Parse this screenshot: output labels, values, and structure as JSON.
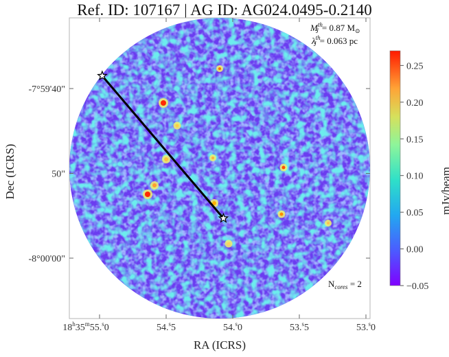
{
  "header": {
    "title": "Ref. ID: 107167 | AG ID: AG024.0495-0.2140"
  },
  "annotations": {
    "mass_text": "M",
    "mass_sup": "th",
    "mass_sub": "J",
    "mass_value": "= 0.87 M",
    "mass_unit_symbol": "⊙",
    "length_text": "λ",
    "length_sup": "th",
    "length_sub": "J",
    "length_value": "= 0.063 pc",
    "ncores_text": "N",
    "ncores_sub": "cores",
    "ncores_value": " = 2"
  },
  "chart_data": {
    "type": "heatmap",
    "title": "Ref. ID: 107167 | AG ID: AG024.0495-0.2140",
    "xlabel": "RA (ICRS)",
    "ylabel": "Dec (ICRS)",
    "x_ticks": [
      {
        "h": "18",
        "m": "35",
        "s": "55.0",
        "label_prefix": true
      },
      {
        "s": "54.5"
      },
      {
        "s": "54.0"
      },
      {
        "s": "53.5"
      },
      {
        "s": "53.0"
      }
    ],
    "y_ticks": [
      "-7°59'40\"",
      "50\"",
      "-8°00'00\""
    ],
    "colorbar": {
      "label": "mJy/beam",
      "ticks": [
        "0.25",
        "0.20",
        "0.15",
        "0.10",
        "0.05",
        "0.00",
        "−0.05"
      ],
      "range": [
        -0.05,
        0.27
      ],
      "colormap": "rainbow"
    },
    "cores": [
      {
        "ra_s": 54.98,
        "dec_arcsec": -38.5
      },
      {
        "ra_s": 54.07,
        "dec_arcsec": -55.3
      }
    ],
    "n_cores": 2
  },
  "colors": {
    "background_field": "#6b3cf0",
    "link_line": "#000000",
    "star_marker": "#ffffff"
  }
}
